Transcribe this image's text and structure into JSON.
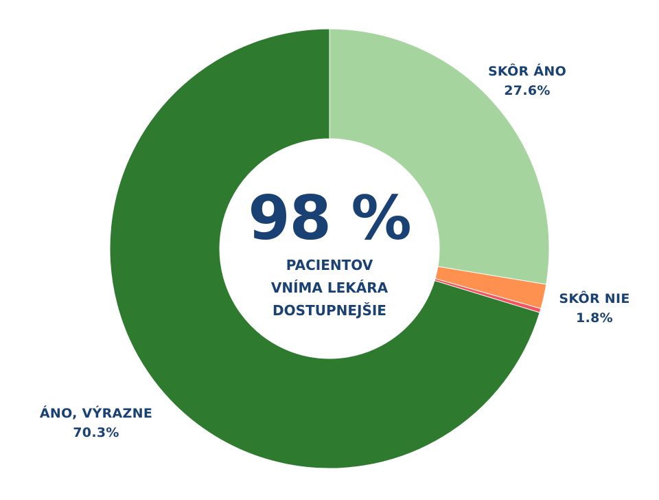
{
  "chart_data": {
    "type": "pie",
    "variant": "donut",
    "title": "",
    "center_text": {
      "value": "98 %",
      "caption_lines": [
        "PACIENTOV",
        "VNÍMA LEKÁRA",
        "DOSTUPNEJŠIE"
      ]
    },
    "start_angle": "12 o'clock",
    "direction": "clockwise",
    "slices": [
      {
        "label": "SKÔR ÁNO",
        "value": 27.6,
        "display": "27.6%",
        "color": "#a5d49e"
      },
      {
        "label": "SKÔR NIE",
        "value": 1.8,
        "display": "1.8%",
        "color": "#fe914f"
      },
      {
        "label": "",
        "value": 0.3,
        "display": "",
        "color": "#f4535f"
      },
      {
        "label": "ÁNO, VÝRAZNE",
        "value": 70.3,
        "display": "70.3%",
        "color": "#2e7a2f"
      }
    ],
    "legend": "none (direct labels)"
  },
  "labels": {
    "skor_ano": {
      "name": "SKÔR ÁNO",
      "pct": "27.6%"
    },
    "skor_nie": {
      "name": "SKÔR NIE",
      "pct": "1.8%"
    },
    "ano_vyrazne": {
      "name": "ÁNO, VÝRAZNE",
      "pct": "70.3%"
    }
  },
  "colors": {
    "text": "#1a4173",
    "background": "#ffffff"
  }
}
